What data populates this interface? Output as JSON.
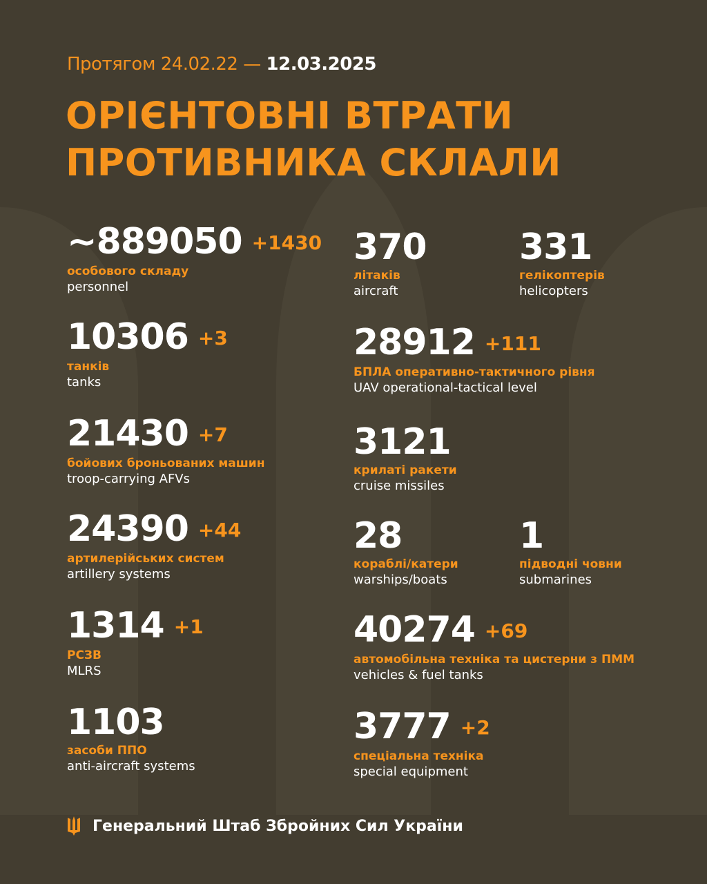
{
  "header": {
    "period_prefix": "Протягом 24.02.22 —",
    "period_end": "12.03.2025",
    "title_line1": "ОРІЄНТОВНІ ВТРАТИ",
    "title_line2": "ПРОТИВНИКА СКЛАЛИ"
  },
  "colors": {
    "background": "#433d30",
    "accent": "#f7941d",
    "text": "#ffffff"
  },
  "left": [
    {
      "value": "~889050",
      "delta": "+1430",
      "ua": "особового складу",
      "en": "personnel"
    },
    {
      "value": "10306",
      "delta": "+3",
      "ua": "танків",
      "en": "tanks"
    },
    {
      "value": "21430",
      "delta": "+7",
      "ua": "бойових броньованих машин",
      "en": "troop-carrying AFVs"
    },
    {
      "value": "24390",
      "delta": "+44",
      "ua": "артилерійських систем",
      "en": "artillery systems"
    },
    {
      "value": "1314",
      "delta": "+1",
      "ua": "РСЗВ",
      "en": "MLRS"
    },
    {
      "value": "1103",
      "delta": "",
      "ua": "засоби ППО",
      "en": "anti-aircraft systems"
    }
  ],
  "right": [
    {
      "value": "370",
      "delta": "",
      "ua": "літаків",
      "en": "aircraft"
    },
    {
      "value": "331",
      "delta": "",
      "ua": "гелікоптерів",
      "en": "helicopters"
    },
    {
      "value": "28912",
      "delta": "+111",
      "ua": "БПЛА оперативно-тактичного рівня",
      "en": "UAV operational-tactical level"
    },
    {
      "value": "3121",
      "delta": "",
      "ua": "крилаті ракети",
      "en": "cruise missiles"
    },
    {
      "value": "28",
      "delta": "",
      "ua": "кораблі/катери",
      "en": "warships/boats"
    },
    {
      "value": "1",
      "delta": "",
      "ua": "підводні човни",
      "en": "submarines"
    },
    {
      "value": "40274",
      "delta": "+69",
      "ua": "автомобільна техніка та цистерни з ПММ",
      "en": "vehicles & fuel tanks"
    },
    {
      "value": "3777",
      "delta": "+2",
      "ua": "спеціальна техніка",
      "en": "special equipment"
    }
  ],
  "footer": {
    "icon": "trident-icon",
    "text": "Генеральний Штаб Збройних Сил України"
  }
}
